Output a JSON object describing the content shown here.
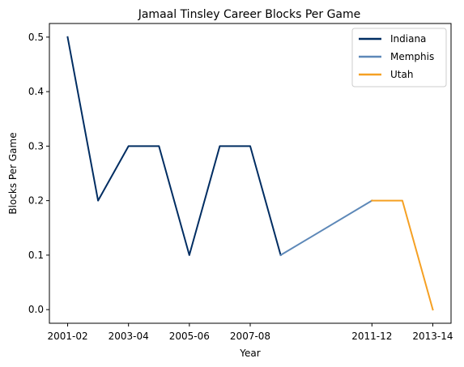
{
  "chart_data": {
    "type": "line",
    "title": "Jamaal Tinsley Career Blocks Per Game",
    "xlabel": "Year",
    "ylabel": "Blocks Per Game",
    "x_tick_labels": [
      "2001-02",
      "2003-04",
      "2005-06",
      "2007-08",
      "2011-12",
      "2013-14"
    ],
    "y_ticks": [
      0.0,
      0.1,
      0.2,
      0.3,
      0.4,
      0.5
    ],
    "y_tick_labels": [
      "0.0",
      "0.1",
      "0.2",
      "0.3",
      "0.4",
      "0.5"
    ],
    "ylim": [
      -0.025,
      0.525
    ],
    "grid": false,
    "legend_position": "top-right",
    "series": [
      {
        "name": "Indiana",
        "color": "#002d62",
        "points": [
          {
            "x": "2001-02",
            "y": 0.5
          },
          {
            "x": "2002-03",
            "y": 0.2
          },
          {
            "x": "2003-04",
            "y": 0.3
          },
          {
            "x": "2004-05",
            "y": 0.3
          },
          {
            "x": "2005-06",
            "y": 0.1
          },
          {
            "x": "2006-07",
            "y": 0.3
          },
          {
            "x": "2007-08",
            "y": 0.3
          },
          {
            "x": "2008-09",
            "y": 0.1
          }
        ]
      },
      {
        "name": "Memphis",
        "color": "#5d88b8",
        "points": [
          {
            "x": "2008-09",
            "y": 0.1
          },
          {
            "x": "2011-12",
            "y": 0.2
          }
        ]
      },
      {
        "name": "Utah",
        "color": "#f5a023",
        "points": [
          {
            "x": "2011-12",
            "y": 0.2
          },
          {
            "x": "2012-13",
            "y": 0.2
          },
          {
            "x": "2013-14",
            "y": 0.0
          }
        ]
      }
    ]
  }
}
